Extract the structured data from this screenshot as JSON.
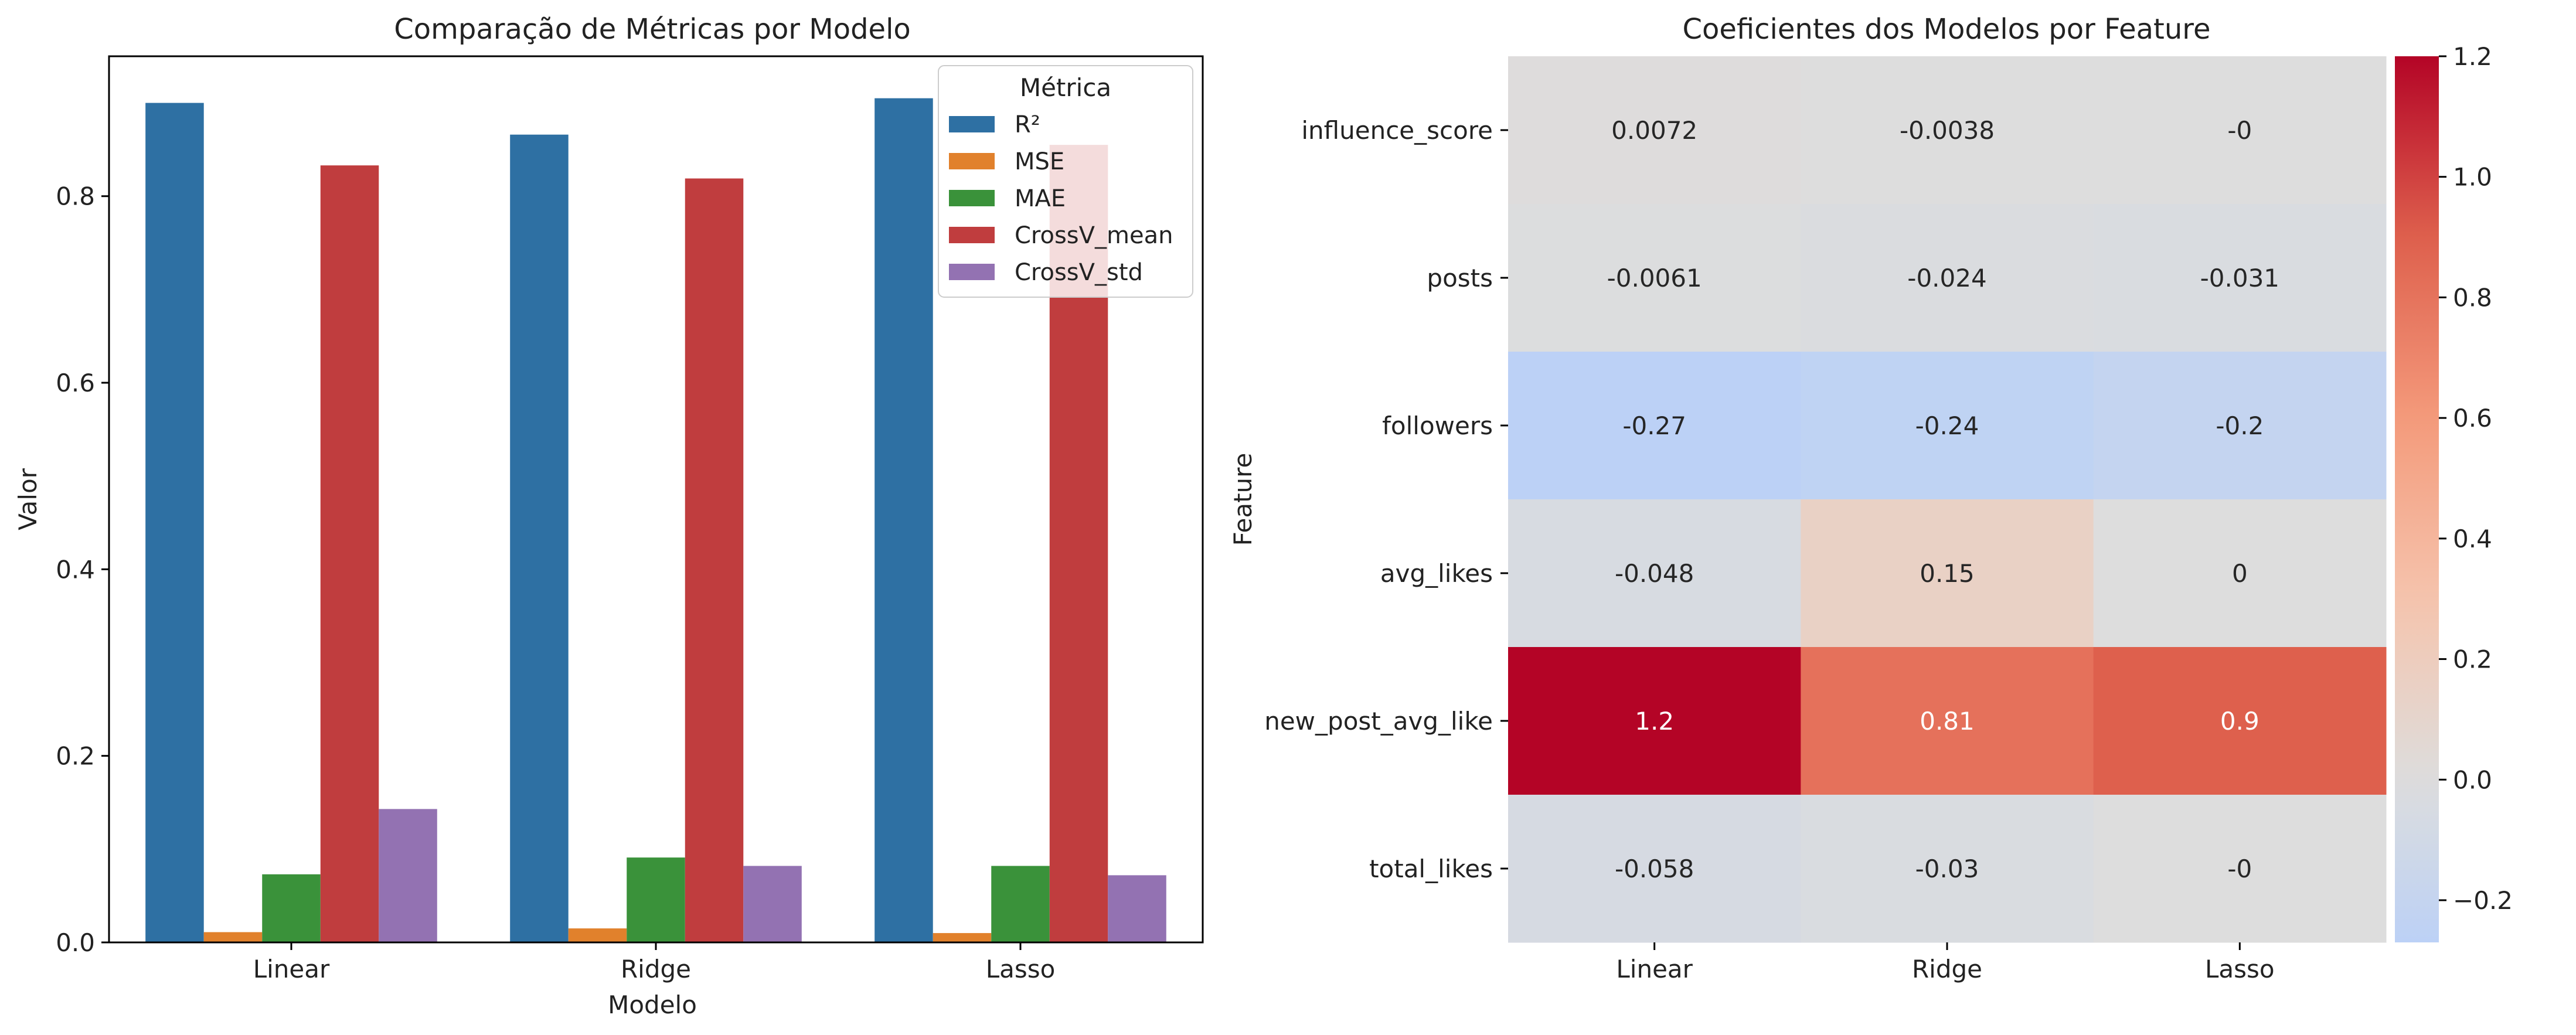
{
  "chart_data": [
    {
      "type": "bar",
      "title": "Comparação de Métricas por Modelo",
      "xlabel": "Modelo",
      "ylabel": "Valor",
      "ylim": [
        0,
        0.95
      ],
      "yticks": [
        "0.0",
        "0.2",
        "0.4",
        "0.6",
        "0.8"
      ],
      "categories": [
        "Linear",
        "Ridge",
        "Lasso"
      ],
      "legend": {
        "title": "Métrica",
        "position": "upper-right"
      },
      "series": [
        {
          "name": "R²",
          "color": "#2e70a3",
          "values": [
            0.9,
            0.866,
            0.905
          ]
        },
        {
          "name": "MSE",
          "color": "#e1812c",
          "values": [
            0.011,
            0.015,
            0.01
          ]
        },
        {
          "name": "MAE",
          "color": "#3a923a",
          "values": [
            0.073,
            0.091,
            0.082
          ]
        },
        {
          "name": "CrossV_mean",
          "color": "#c03d3e",
          "values": [
            0.833,
            0.819,
            0.855
          ]
        },
        {
          "name": "CrossV_std",
          "color": "#9372b2",
          "values": [
            0.143,
            0.082,
            0.072
          ]
        }
      ]
    },
    {
      "type": "heatmap",
      "title": "Coeficientes dos Modelos por Feature",
      "xlabel": "",
      "ylabel": "Feature",
      "columns": [
        "Linear",
        "Ridge",
        "Lasso"
      ],
      "rows": [
        "influence_score",
        "posts",
        "followers",
        "avg_likes",
        "new_post_avg_like",
        "total_likes"
      ],
      "values": [
        [
          0.0072,
          -0.0038,
          0
        ],
        [
          -0.0061,
          -0.024,
          -0.031
        ],
        [
          -0.27,
          -0.24,
          -0.2
        ],
        [
          -0.048,
          0.15,
          0
        ],
        [
          1.2,
          0.81,
          0.9
        ],
        [
          -0.058,
          -0.03,
          0
        ]
      ],
      "labels": [
        [
          "0.0072",
          "-0.0038",
          "-0"
        ],
        [
          "-0.0061",
          "-0.024",
          "-0.031"
        ],
        [
          "-0.27",
          "-0.24",
          "-0.2"
        ],
        [
          "-0.048",
          "0.15",
          "0"
        ],
        [
          "1.2",
          "0.81",
          "0.9"
        ],
        [
          "-0.058",
          "-0.03",
          "-0"
        ]
      ],
      "colormap": "coolwarm",
      "vmin": -0.27,
      "vmax": 1.2,
      "colorbar_ticks": [
        "−0.2",
        "0.0",
        "0.2",
        "0.4",
        "0.6",
        "0.8",
        "1.0",
        "1.2"
      ]
    }
  ]
}
